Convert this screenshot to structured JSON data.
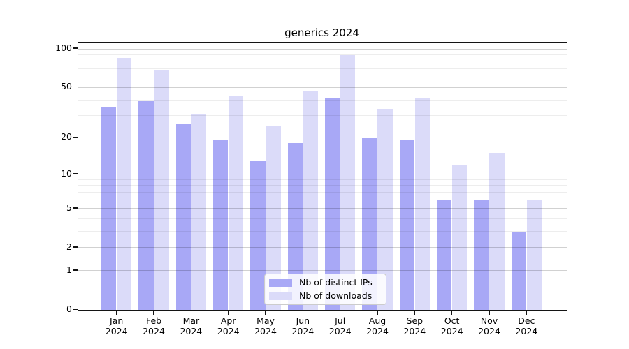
{
  "title": "generics 2024",
  "chart_data": {
    "type": "bar",
    "title": "generics 2024",
    "categories": [
      "Jan",
      "Feb",
      "Mar",
      "Apr",
      "May",
      "Jun",
      "Jul",
      "Aug",
      "Sep",
      "Oct",
      "Nov",
      "Dec"
    ],
    "year_label": "2024",
    "series": [
      {
        "name": "Nb of distinct IPs",
        "color": "#a8a8f6",
        "values": [
          35,
          39,
          26,
          19,
          13,
          18,
          41,
          20,
          19,
          6,
          6,
          3
        ]
      },
      {
        "name": "Nb of downloads",
        "color": "#dbdbf9",
        "values": [
          85,
          69,
          31,
          43,
          25,
          47,
          90,
          34,
          41,
          12,
          15,
          6
        ]
      }
    ],
    "xlabel": "",
    "ylabel": "",
    "yscale": "log1p",
    "ylim": [
      0,
      112
    ],
    "yticks": [
      {
        "value": 100,
        "label": "100"
      },
      {
        "value": 50,
        "label": "50"
      },
      {
        "value": 20,
        "label": "20"
      },
      {
        "value": 10,
        "label": "10"
      },
      {
        "value": 5,
        "label": "5"
      },
      {
        "value": 2,
        "label": "2"
      },
      {
        "value": 1,
        "label": "1"
      },
      {
        "value": 0,
        "label": "0"
      }
    ],
    "labeled_grid": [
      1,
      2,
      5,
      10,
      20,
      50,
      100
    ],
    "minor_grid": [
      3,
      4,
      6,
      7,
      8,
      9,
      30,
      40,
      60,
      70,
      80,
      90
    ],
    "grid": true,
    "legend_position": "lower center"
  },
  "colors": {
    "spine": "#141414",
    "grid_labeled": "rgba(0,0,0,0.18)",
    "grid_minor": "rgba(0,0,0,0.07)",
    "legend_border": "#cccccc",
    "legend_bg": "rgba(255,255,255,0.85)",
    "text": "#000000"
  }
}
